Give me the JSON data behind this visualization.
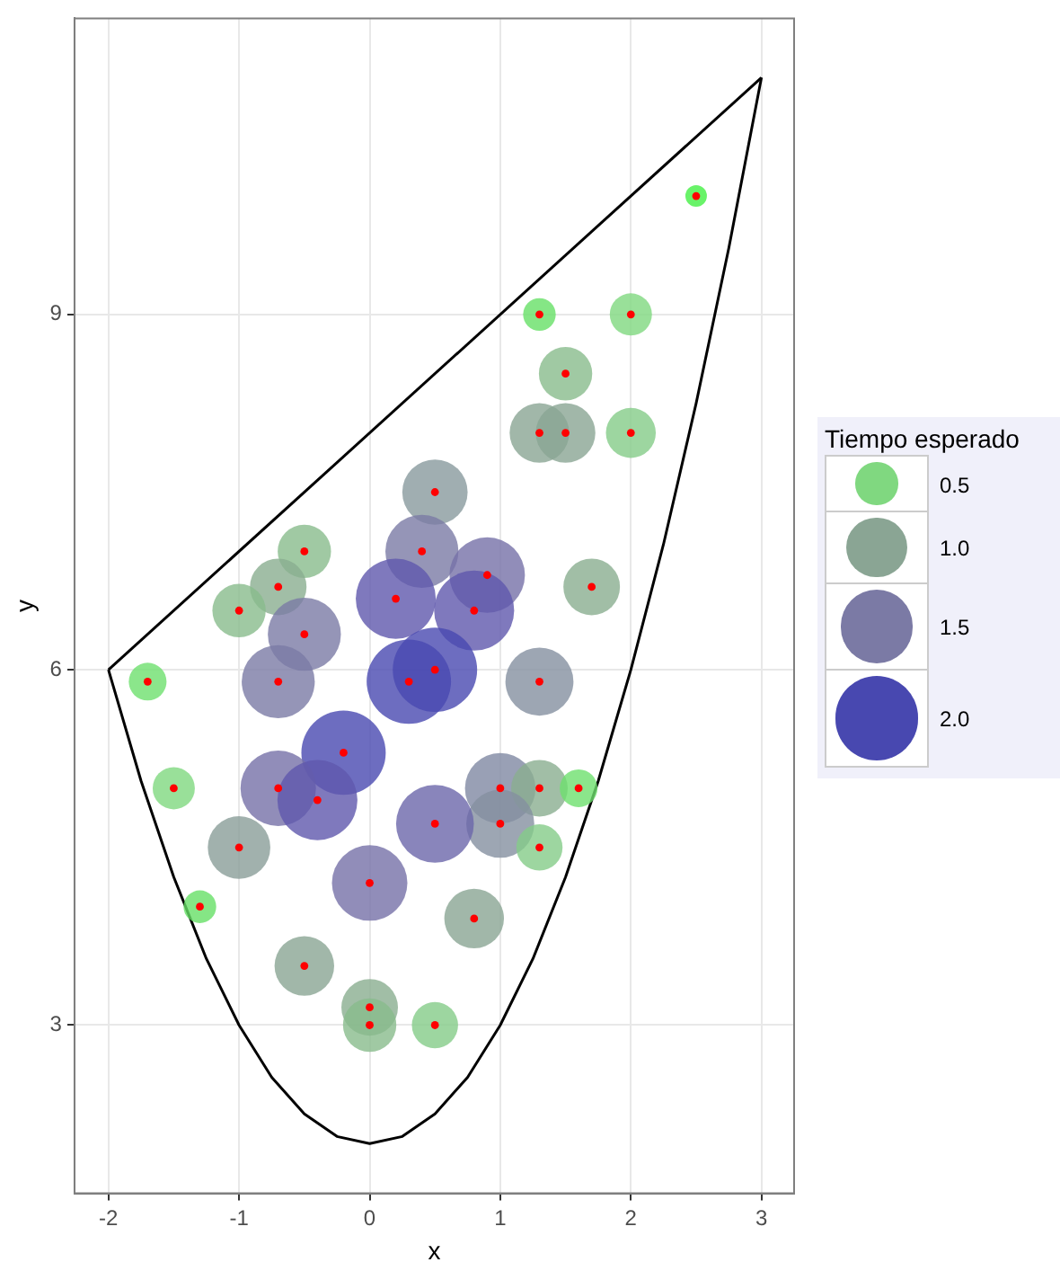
{
  "chart_data": {
    "type": "bubble",
    "xlabel": "x",
    "ylabel": "y",
    "legend_title": "Tiempo esperado",
    "size_legend": [
      0.5,
      {
        "value": 1,
        "label": "1.0"
      },
      1.5,
      {
        "value": 2,
        "label": "2.0"
      }
    ],
    "grid": true,
    "xlim": [
      -2.26,
      3.25
    ],
    "ylim": [
      1.58,
      11.5
    ],
    "xticks": [
      -2,
      -1,
      0,
      1,
      2,
      3
    ],
    "yticks": [
      3,
      6,
      9
    ],
    "series": [
      {
        "type": "line",
        "color": "#000000",
        "x": [
          -2,
          -1.75,
          -1.5,
          -1.25,
          -1,
          -0.75,
          -0.5,
          -0.25,
          0,
          0.25,
          0.5,
          0.75,
          1,
          1.25,
          1.5,
          1.75,
          2,
          2.25,
          2.5,
          2.75,
          3
        ],
        "values": [
          6,
          5.06,
          4.25,
          3.56,
          3,
          2.56,
          2.25,
          2.06,
          2,
          2.06,
          2.25,
          2.56,
          3,
          3.56,
          4.25,
          5.06,
          6,
          7.06,
          8.25,
          9.56,
          11
        ]
      },
      {
        "type": "line",
        "color": "#000000",
        "x": [
          -2,
          3
        ],
        "values": [
          6,
          11
        ]
      },
      {
        "type": "bubble",
        "x": [
          2.5,
          1.3,
          2,
          1.5,
          1.3,
          1.5,
          2,
          0.5,
          0.4,
          -0.5,
          -0.7,
          -1,
          0.9,
          0.2,
          0.8,
          1.7,
          -0.5,
          -1.7,
          -0.7,
          0.3,
          0.5,
          1.3,
          -0.2,
          -1.5,
          -0.7,
          -0.4,
          1,
          1.3,
          1.6,
          1,
          0.5,
          -1,
          1.3,
          0,
          -1.3,
          0.8,
          -0.5,
          0,
          0,
          0.5
        ],
        "values": [
          10,
          9,
          9,
          8.5,
          8,
          8,
          8,
          7.5,
          7,
          7,
          6.7,
          6.5,
          6.8,
          6.6,
          6.5,
          6.7,
          6.3,
          5.9,
          5.9,
          5.9,
          6,
          5.9,
          5.3,
          5,
          5,
          4.9,
          5,
          5,
          5,
          4.7,
          4.7,
          4.5,
          4.5,
          4.2,
          4,
          3.9,
          3.5,
          3.15,
          3,
          3
        ],
        "sizes": [
          0.13,
          0.3,
          0.5,
          0.8,
          1,
          1,
          0.7,
          1.2,
          1.5,
          0.8,
          0.9,
          0.8,
          1.6,
          1.8,
          1.8,
          0.9,
          1.5,
          0.4,
          1.5,
          2,
          2,
          1.3,
          2,
          0.5,
          1.6,
          1.8,
          1.4,
          0.9,
          0.4,
          1.3,
          1.7,
          1.1,
          0.6,
          1.6,
          0.3,
          1,
          1,
          0.9,
          0.8,
          0.6
        ],
        "colors": [
          "#44f044",
          "#66e066",
          "#80d880",
          "#88bb8c",
          "#8aa594",
          "#8aa594",
          "#84cc88",
          "#889a9e",
          "#7b7aa5",
          "#88bb8c",
          "#8aae90",
          "#88bb8c",
          "#7670a8",
          "#5f58ad",
          "#5f58ad",
          "#8aae90",
          "#7b7aa5",
          "#6ee06e",
          "#7b7aa5",
          "#4848b0",
          "#4848b0",
          "#8590a0",
          "#4848b0",
          "#80d880",
          "#7670a8",
          "#5f58ad",
          "#8088a2",
          "#8aae90",
          "#6ee06e",
          "#8590a0",
          "#6c66aa",
          "#8a9e98",
          "#84cc88",
          "#7670a8",
          "#66e066",
          "#8aa594",
          "#8aa594",
          "#8aae90",
          "#88bb8c",
          "#84cc88"
        ]
      },
      {
        "type": "scatter",
        "color": "#ff0000",
        "marker": "circle",
        "x": [
          2.5,
          1.3,
          2,
          1.5,
          1.3,
          1.5,
          2,
          0.5,
          0.4,
          -0.5,
          -0.7,
          -1,
          0.9,
          0.2,
          0.8,
          1.7,
          -0.5,
          -1.7,
          -0.7,
          0.3,
          0.5,
          1.3,
          -0.2,
          -1.5,
          -0.7,
          -0.4,
          1,
          1.3,
          1.6,
          1,
          0.5,
          -1,
          1.3,
          0,
          -1.3,
          0.8,
          -0.5,
          0,
          0,
          0.5
        ],
        "values": [
          10,
          9,
          9,
          8.5,
          8,
          8,
          8,
          7.5,
          7,
          7,
          6.7,
          6.5,
          6.8,
          6.6,
          6.5,
          6.7,
          6.3,
          5.9,
          5.9,
          5.9,
          6,
          5.9,
          5.3,
          5,
          5,
          4.9,
          5,
          5,
          5,
          4.7,
          4.7,
          4.5,
          4.5,
          4.2,
          4,
          3.9,
          3.5,
          3.15,
          3,
          3
        ]
      }
    ]
  }
}
